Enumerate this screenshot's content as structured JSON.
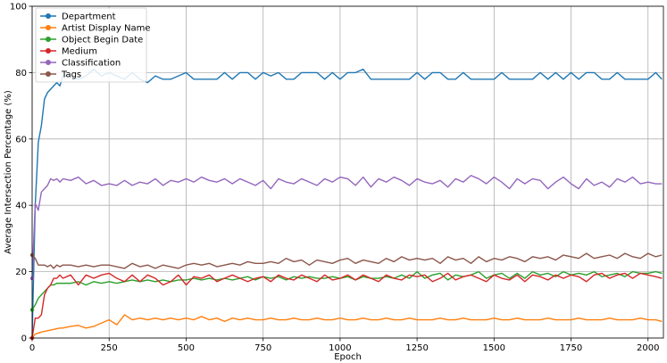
{
  "chart_data": {
    "type": "line",
    "title": "",
    "xlabel": "Epoch",
    "ylabel": "Average Intersection Percentage (%)",
    "xlim": [
      0,
      2050
    ],
    "ylim": [
      0,
      100
    ],
    "xticks": [
      0,
      250,
      500,
      750,
      1000,
      1250,
      1500,
      1750,
      2000
    ],
    "yticks": [
      0,
      20,
      40,
      60,
      80,
      100
    ],
    "grid": true,
    "legend_position": "top-left",
    "x": [
      0,
      10,
      20,
      30,
      40,
      50,
      60,
      70,
      80,
      90,
      100,
      125,
      150,
      175,
      200,
      225,
      250,
      275,
      300,
      325,
      350,
      375,
      400,
      425,
      450,
      475,
      500,
      525,
      550,
      575,
      600,
      625,
      650,
      675,
      700,
      725,
      750,
      775,
      800,
      825,
      850,
      875,
      900,
      925,
      950,
      975,
      1000,
      1025,
      1050,
      1075,
      1100,
      1125,
      1150,
      1175,
      1200,
      1225,
      1250,
      1275,
      1300,
      1325,
      1350,
      1375,
      1400,
      1425,
      1450,
      1475,
      1500,
      1525,
      1550,
      1575,
      1600,
      1625,
      1650,
      1675,
      1700,
      1725,
      1750,
      1775,
      1800,
      1825,
      1850,
      1875,
      1900,
      1925,
      1950,
      1975,
      2000,
      2025,
      2045
    ],
    "series": [
      {
        "name": "Department",
        "color": "#1f77b4",
        "values": [
          0,
          40,
          59,
          64,
          72,
          74,
          75,
          76,
          77,
          76,
          79,
          79,
          78,
          79,
          81,
          79,
          80,
          79,
          78,
          80,
          78,
          77,
          79,
          78,
          78,
          79,
          80,
          78,
          78,
          78,
          78,
          80,
          78,
          80,
          80,
          78,
          80,
          79,
          80,
          78,
          78,
          80,
          80,
          80,
          78,
          80,
          78,
          80,
          80,
          81,
          78,
          78,
          78,
          78,
          78,
          78,
          80,
          78,
          80,
          80,
          78,
          78,
          80,
          78,
          78,
          78,
          78,
          80,
          78,
          78,
          78,
          78,
          80,
          78,
          80,
          78,
          80,
          78,
          80,
          80,
          78,
          78,
          80,
          78,
          78,
          78,
          78,
          80,
          78
        ]
      },
      {
        "name": "Artist Display Name",
        "color": "#ff7f0e",
        "values": [
          0,
          1.2,
          1.5,
          1.8,
          2.0,
          2.2,
          2.4,
          2.6,
          2.8,
          3.0,
          3.0,
          3.5,
          3.8,
          3.0,
          3.5,
          4.5,
          5.5,
          4.0,
          7.0,
          5.5,
          6.0,
          5.5,
          6.0,
          5.5,
          6.0,
          5.5,
          6.0,
          5.5,
          6.5,
          5.5,
          6.0,
          5.0,
          6.0,
          5.5,
          6.0,
          5.5,
          5.5,
          6.0,
          5.5,
          5.5,
          6.0,
          5.5,
          5.5,
          6.0,
          5.5,
          5.5,
          6.0,
          5.5,
          5.5,
          6.0,
          5.5,
          5.5,
          6.0,
          5.5,
          5.5,
          6.0,
          5.5,
          5.5,
          5.5,
          6.0,
          5.5,
          5.5,
          6.0,
          5.5,
          5.5,
          5.5,
          6.0,
          5.5,
          5.5,
          6.0,
          5.5,
          5.5,
          5.5,
          6.0,
          5.5,
          5.5,
          5.5,
          6.0,
          5.5,
          5.5,
          5.5,
          6.0,
          5.5,
          5.5,
          5.5,
          6.0,
          5.5,
          5.5,
          5.0
        ]
      },
      {
        "name": "Object Begin Date",
        "color": "#2ca02c",
        "values": [
          8.5,
          10,
          12,
          13,
          14,
          15,
          16,
          16,
          16.5,
          16.5,
          16.5,
          16.5,
          17,
          16,
          17,
          16.5,
          17,
          16.5,
          17,
          17.5,
          17,
          17.5,
          17,
          17.5,
          17,
          17.5,
          17.5,
          18,
          17.5,
          18,
          17.5,
          18,
          17.5,
          18,
          18.5,
          17.5,
          18.5,
          18,
          18.5,
          17.5,
          18.5,
          18,
          18.5,
          18,
          18,
          18.5,
          18,
          18.5,
          17.5,
          18.5,
          18,
          18,
          18.5,
          18,
          19,
          18,
          20,
          18,
          19,
          19.5,
          17.5,
          19,
          18.5,
          19,
          20,
          18,
          19,
          19.5,
          18,
          19.5,
          18,
          20,
          19,
          19.5,
          18.5,
          20,
          19,
          19.5,
          19,
          20,
          18.5,
          19,
          19.5,
          18.5,
          20,
          19.5,
          19.5,
          20,
          19.5
        ]
      },
      {
        "name": "Medium",
        "color": "#d62728",
        "values": [
          0,
          6,
          6,
          7,
          13,
          15,
          16,
          18,
          18,
          19,
          18,
          19,
          16,
          19,
          18,
          19,
          19.5,
          18,
          17,
          19,
          17,
          19,
          18,
          16,
          17,
          19,
          16,
          18.5,
          18,
          19,
          17,
          18,
          19,
          18,
          17,
          18,
          18.5,
          17,
          19,
          18,
          17.5,
          19,
          18,
          17,
          19,
          17.5,
          18,
          19,
          17.5,
          19,
          18,
          17,
          19,
          18,
          17.5,
          19,
          18.5,
          19,
          17,
          18,
          19.5,
          17.5,
          18.5,
          19,
          18,
          17,
          19,
          18,
          17.5,
          19,
          17,
          19,
          18.5,
          17.5,
          19,
          18,
          19,
          18.5,
          17,
          19,
          19.5,
          18,
          19,
          19.5,
          18,
          19.5,
          19,
          18.5,
          18
        ]
      },
      {
        "name": "Classification",
        "color": "#9467bd",
        "values": [
          18,
          40.5,
          38.5,
          44,
          45,
          46,
          48,
          47.5,
          48,
          47,
          48,
          47.5,
          48.5,
          46.5,
          47.5,
          46,
          46.5,
          46,
          47.5,
          46,
          47,
          46.5,
          48,
          46,
          47.5,
          47,
          48,
          47,
          48.5,
          47.5,
          47,
          48,
          46.5,
          48,
          47,
          46,
          47.5,
          45,
          48,
          47,
          46.5,
          48,
          47,
          46,
          48,
          47,
          48.5,
          48,
          46,
          48.5,
          45.5,
          48,
          47,
          48.5,
          47.5,
          46,
          48,
          47,
          46.5,
          47.5,
          45.5,
          48,
          47,
          49,
          48,
          46.5,
          48.5,
          47,
          45,
          48,
          46.5,
          48,
          47.5,
          45,
          47,
          48.5,
          46.5,
          45,
          48,
          46,
          47,
          45.5,
          48,
          47,
          48.5,
          46.5,
          47,
          46.5,
          46.5
        ]
      },
      {
        "name": "Tags",
        "color": "#8c564b",
        "values": [
          25,
          24,
          22,
          22,
          22,
          21.5,
          22,
          21,
          22,
          21.5,
          22,
          22,
          21.5,
          22,
          21.5,
          22,
          22,
          21.5,
          21,
          22.5,
          21.5,
          22,
          21,
          22,
          21.5,
          21,
          22,
          22.5,
          22,
          22.5,
          21.5,
          22,
          22.5,
          22,
          23,
          22.5,
          22.5,
          23,
          22.5,
          24,
          23,
          23.5,
          22,
          23.5,
          23,
          22.5,
          23.5,
          24,
          22.5,
          23.5,
          23,
          22.5,
          24,
          23,
          24.5,
          23.5,
          24,
          23.5,
          24,
          22.5,
          24.5,
          23.5,
          24,
          22.5,
          24.5,
          23,
          24,
          23.5,
          24.5,
          24,
          23,
          24.5,
          24,
          24.5,
          23.5,
          25,
          24.5,
          24,
          25.5,
          24,
          24.5,
          25,
          24,
          25.5,
          24.5,
          24,
          25.5,
          24.5,
          25
        ]
      }
    ]
  }
}
